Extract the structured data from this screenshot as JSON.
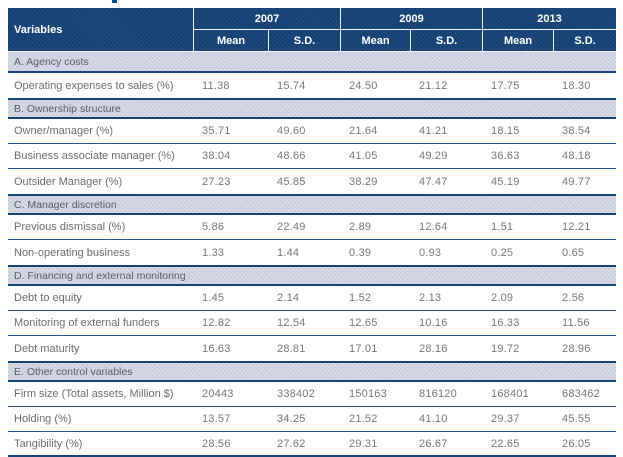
{
  "colors": {
    "header_bg": "#1b4b80",
    "band_bg": "#d9dcea",
    "line_thick": "#16437a",
    "line_thin": "#2a5794",
    "header_text": "#ffffff",
    "label_text": "#6d6e72",
    "num_text": "#77787c",
    "section_text": "#5c5d66"
  },
  "table": {
    "variables_header": "Variables",
    "year_groups": [
      {
        "year": "2007",
        "sub": [
          "Mean",
          "S.D."
        ]
      },
      {
        "year": "2009",
        "sub": [
          "Mean",
          "S.D."
        ]
      },
      {
        "year": "2013",
        "sub": [
          "Mean",
          "S.D."
        ]
      }
    ],
    "sections": [
      {
        "title": "A. Agency costs",
        "rows": [
          {
            "label": "Operating expenses to sales (%)",
            "values": [
              "11.38",
              "15.74",
              "24.50",
              "21.12",
              "17.75",
              "18.30"
            ]
          }
        ]
      },
      {
        "title": "B. Ownership structure",
        "rows": [
          {
            "label": "Owner/manager (%)",
            "values": [
              "35.71",
              "49.60",
              "21.64",
              "41.21",
              "18.15",
              "38.54"
            ]
          },
          {
            "label": "Business associate manager (%)",
            "values": [
              "38.04",
              "48.66",
              "41.05",
              "49.29",
              "36.63",
              "48.18"
            ]
          },
          {
            "label": "Outsider Manager (%)",
            "values": [
              "27.23",
              "45.85",
              "38.29",
              "47.47",
              "45.19",
              "49.77"
            ]
          }
        ]
      },
      {
        "title": "C. Manager discretion",
        "rows": [
          {
            "label": "Previous dismissal (%)",
            "values": [
              "5.86",
              "22.49",
              "2.89",
              "12.64",
              "1.51",
              "12.21"
            ]
          },
          {
            "label": "Non-operating business",
            "values": [
              "1.33",
              "1.44",
              "0.39",
              "0.93",
              "0.25",
              "0.65"
            ]
          }
        ]
      },
      {
        "title": "D. Financing and external monitoring",
        "rows": [
          {
            "label": "Debt to equity",
            "values": [
              "1.45",
              "2.14",
              "1.52",
              "2.13",
              "2.09",
              "2.56"
            ]
          },
          {
            "label": "Monitoring of external funders",
            "values": [
              "12.82",
              "12.54",
              "12.65",
              "10.16",
              "16.33",
              "11.56"
            ]
          },
          {
            "label": "Debt maturity",
            "values": [
              "16.63",
              "28.81",
              "17.01",
              "28.16",
              "19.72",
              "28.96"
            ]
          }
        ]
      },
      {
        "title": "E. Other control variables",
        "rows": [
          {
            "label": "Firm size (Total assets, Million $)",
            "values": [
              "20443",
              "338402",
              "150163",
              "816120",
              "168401",
              "683462"
            ]
          },
          {
            "label": "Holding (%)",
            "values": [
              "13.57",
              "34.25",
              "21.52",
              "41.10",
              "29.37",
              "45.55"
            ]
          },
          {
            "label": "Tangibility (%)",
            "values": [
              "28.56",
              "27.62",
              "29.31",
              "26.67",
              "22.65",
              "26.05"
            ]
          }
        ]
      }
    ]
  }
}
